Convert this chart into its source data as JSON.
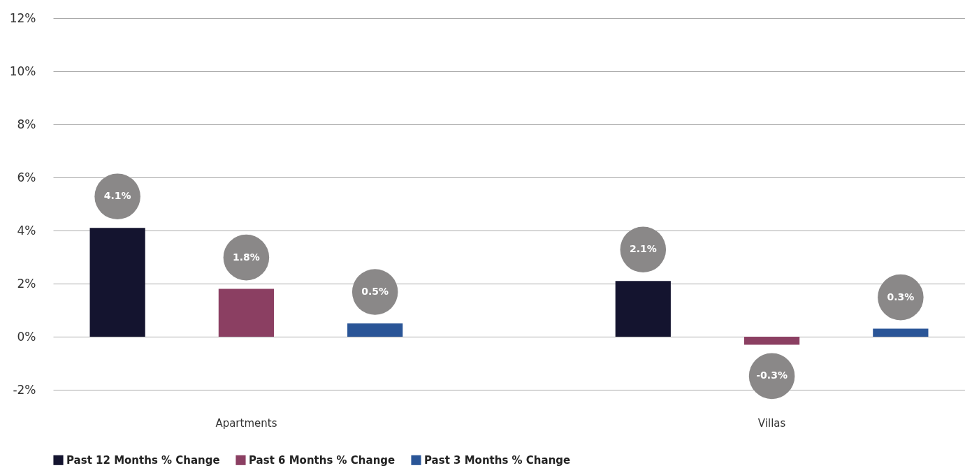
{
  "chart_data": {
    "type": "bar",
    "categories": [
      "Apartments",
      "Villas"
    ],
    "series": [
      {
        "name": "Past 12 Months % Change",
        "color": "#14142f",
        "values": [
          4.1,
          2.1
        ],
        "value_labels": [
          "4.1%",
          "2.1%"
        ]
      },
      {
        "name": "Past 6 Months % Change",
        "color": "#8b3f62",
        "values": [
          1.8,
          -0.3
        ],
        "value_labels": [
          "1.8%",
          "-0.3%"
        ]
      },
      {
        "name": "Past 3 Months % Change",
        "color": "#2a5597",
        "values": [
          0.5,
          0.3
        ],
        "value_labels": [
          "0.5%",
          "0.3%"
        ]
      }
    ],
    "ylim": [
      -2,
      12
    ],
    "yticks": [
      {
        "value": -2,
        "label": "-2%"
      },
      {
        "value": 0,
        "label": "0%"
      },
      {
        "value": 2,
        "label": "2%"
      },
      {
        "value": 4,
        "label": "4%"
      },
      {
        "value": 6,
        "label": "6%"
      },
      {
        "value": 8,
        "label": "8%"
      },
      {
        "value": 10,
        "label": "10%"
      },
      {
        "value": 12,
        "label": "12%"
      }
    ],
    "grid": "y",
    "legend": "bottom"
  }
}
